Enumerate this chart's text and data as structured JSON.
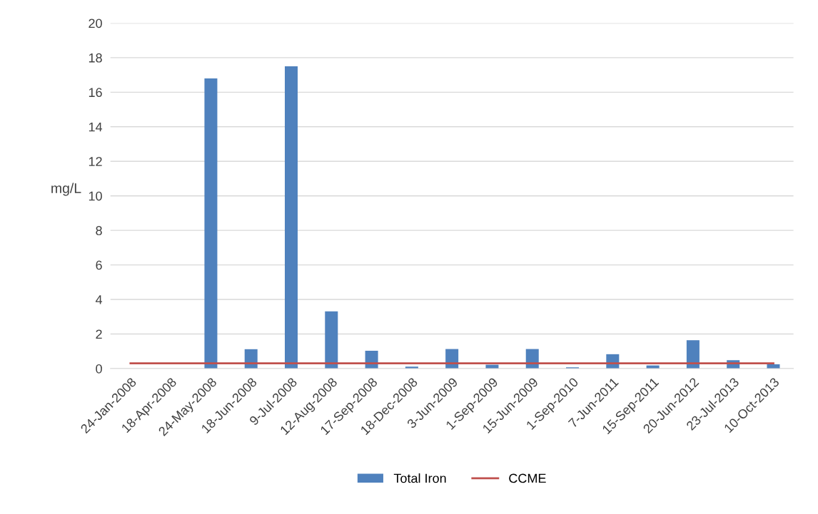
{
  "chart_data": {
    "type": "bar",
    "ylabel": "mg/L",
    "categories": [
      "24-Jan-2008",
      "18-Apr-2008",
      "24-May-2008",
      "18-Jun-2008",
      "9-Jul-2008",
      "12-Aug-2008",
      "17-Sep-2008",
      "18-Dec-2008",
      "3-Jun-2009",
      "1-Sep-2009",
      "15-Jun-2009",
      "1-Sep-2010",
      "7-Jun-2011",
      "15-Sep-2011",
      "20-Jun-2012",
      "23-Jul-2013",
      "10-Oct-2013"
    ],
    "series": [
      {
        "name": "Total Iron",
        "color": "#4f81bd",
        "values": [
          null,
          null,
          16.8,
          1.12,
          17.5,
          3.31,
          1.03,
          0.11,
          1.13,
          0.22,
          1.13,
          0.07,
          0.83,
          0.18,
          1.64,
          0.48,
          0.25
        ]
      },
      {
        "name": "CCME",
        "type": "line",
        "color": "#c0504d",
        "values": [
          0.3,
          0.3,
          0.3,
          0.3,
          0.3,
          0.3,
          0.3,
          0.3,
          0.3,
          0.3,
          0.3,
          0.3,
          0.3,
          0.3,
          0.3,
          0.3,
          0.3
        ]
      }
    ],
    "ylim": [
      0,
      20
    ],
    "yticks": [
      0,
      2,
      4,
      6,
      8,
      10,
      12,
      14,
      16,
      18,
      20
    ],
    "grid": "y",
    "legend": "bottom"
  }
}
